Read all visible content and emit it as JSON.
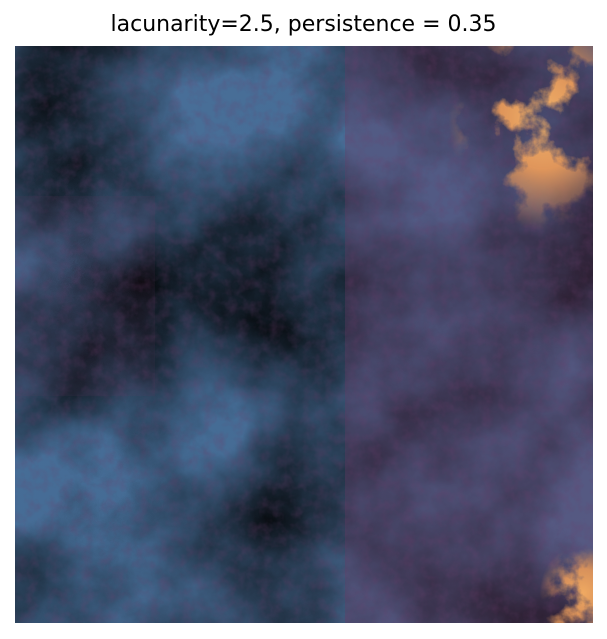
{
  "title": "lacunarity=2.5, persistence = 0.35",
  "image": {
    "icon": "fractal-noise-heatmap",
    "colors": {
      "low": "#3f6a93",
      "mid": "#6b3a63",
      "high": "#e89a5a",
      "peak": "#f2b36a"
    }
  }
}
